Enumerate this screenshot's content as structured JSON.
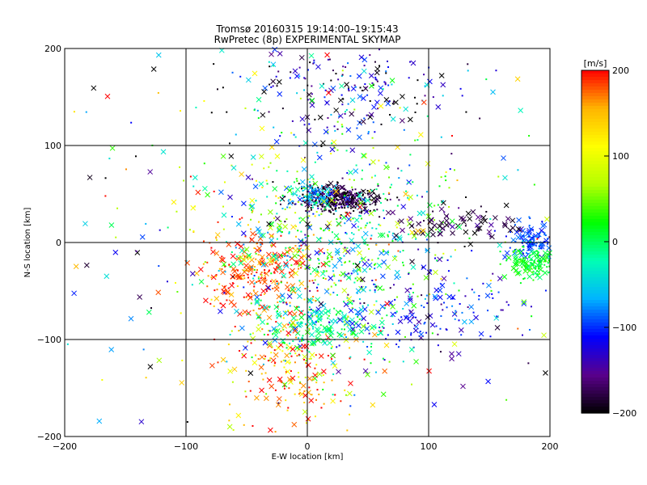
{
  "chart_data": {
    "type": "scatter",
    "title": "Tromsø 20160315 19:14:00–19:15:43",
    "subtitle": "RwPretec (8p) EXPERIMENTAL SKYMAP",
    "xlabel": "E-W location [km]",
    "ylabel": "N-S location [km]",
    "xlim": [
      -200,
      200
    ],
    "ylim": [
      -200,
      200
    ],
    "x_ticks": [
      -200,
      -100,
      0,
      100,
      200
    ],
    "y_ticks": [
      -200,
      -100,
      0,
      100,
      200
    ],
    "x_tick_labels": [
      "−200",
      "−100",
      "0",
      "100",
      "200"
    ],
    "y_tick_labels": [
      "−200",
      "−100",
      "0",
      "100",
      "200"
    ],
    "grid": true,
    "colorbar": {
      "label": "[m/s]",
      "min": -200,
      "max": 200,
      "ticks": [
        200,
        100,
        0,
        -100,
        -200
      ],
      "tick_labels": [
        "200",
        "100",
        "0",
        "−100",
        "−200"
      ],
      "colormap": [
        "#000000",
        "#5a008c",
        "#0000ff",
        "#00b4ff",
        "#00ffb4",
        "#00ff00",
        "#b4ff00",
        "#ffff00",
        "#ffb400",
        "#ff0000"
      ]
    },
    "marker_types": [
      "x",
      "dot"
    ],
    "clusters": [
      {
        "x": 25,
        "y": 45,
        "sx": 15,
        "sy": 7,
        "n": 420,
        "v_mean": -185,
        "v_sd": 20,
        "x_fraction": 0.08
      },
      {
        "x": 5,
        "y": 48,
        "sx": 10,
        "sy": 6,
        "n": 90,
        "v_mean": -50,
        "v_sd": 30,
        "x_fraction": 0.25
      },
      {
        "x": -40,
        "y": -30,
        "sx": 25,
        "sy": 22,
        "n": 260,
        "v_mean": 180,
        "v_sd": 25,
        "x_fraction": 0.45
      },
      {
        "x": 20,
        "y": 0,
        "sx": 45,
        "sy": 55,
        "n": 650,
        "v_mean": 0,
        "v_sd": 70,
        "x_fraction": 0.3
      },
      {
        "x": -15,
        "y": -130,
        "sx": 28,
        "sy": 30,
        "n": 190,
        "v_mean": 160,
        "v_sd": 60,
        "x_fraction": 0.35
      },
      {
        "x": 10,
        "y": -85,
        "sx": 25,
        "sy": 15,
        "n": 150,
        "v_mean": -10,
        "v_sd": 30,
        "x_fraction": 0.4
      },
      {
        "x": 90,
        "y": -70,
        "sx": 35,
        "sy": 25,
        "n": 160,
        "v_mean": -115,
        "v_sd": 30,
        "x_fraction": 0.4
      },
      {
        "x": 30,
        "y": 160,
        "sx": 45,
        "sy": 30,
        "n": 230,
        "v_mean": -140,
        "v_sd": 60,
        "x_fraction": 0.35
      },
      {
        "x": 185,
        "y": 5,
        "sx": 10,
        "sy": 10,
        "n": 120,
        "v_mean": -95,
        "v_sd": 15,
        "x_fraction": 0.4
      },
      {
        "x": 185,
        "y": -20,
        "sx": 10,
        "sy": 8,
        "n": 130,
        "v_mean": 15,
        "v_sd": 12,
        "x_fraction": 0.35
      },
      {
        "x": 130,
        "y": 20,
        "sx": 35,
        "sy": 10,
        "n": 80,
        "v_mean": -180,
        "v_sd": 20,
        "x_fraction": 0.7
      },
      {
        "x": 0,
        "y": 0,
        "sx": 120,
        "sy": 110,
        "n": 320,
        "v_mean": 0,
        "v_sd": 130,
        "x_fraction": 0.45
      }
    ]
  }
}
